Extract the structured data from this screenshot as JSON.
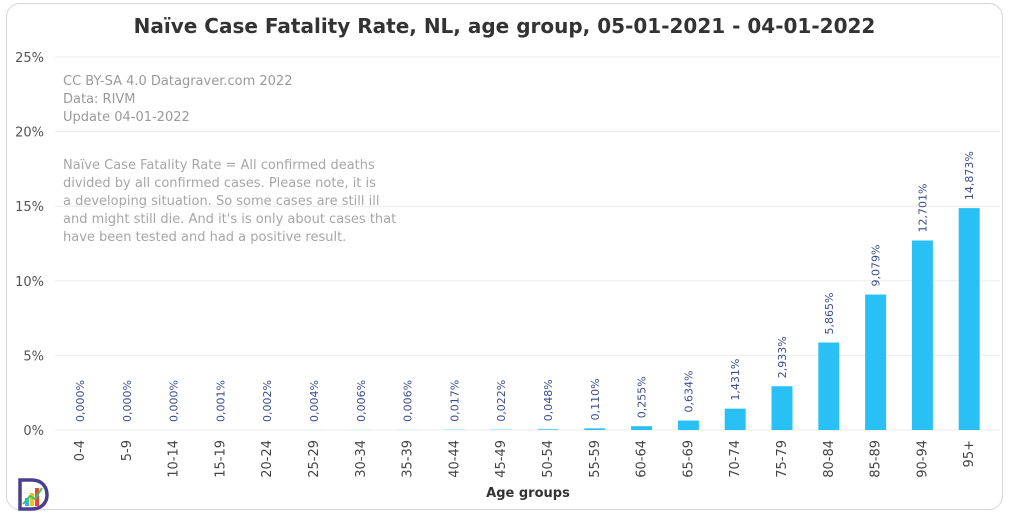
{
  "chart_data": {
    "type": "bar",
    "title": "Naïve Case Fatality Rate, NL, age group, 05-01-2021 - 04-01-2022",
    "xlabel": "Age groups",
    "ylabel": "",
    "ylim": [
      0,
      25
    ],
    "y_ticks": [
      "0%",
      "5%",
      "10%",
      "15%",
      "20%",
      "25%"
    ],
    "y_tick_values": [
      0,
      5,
      10,
      15,
      20,
      25
    ],
    "grid": true,
    "bar_color": "#29c0f5",
    "label_color": "#3a4d8f",
    "categories": [
      "0-4",
      "5-9",
      "10-14",
      "15-19",
      "20-24",
      "25-29",
      "30-34",
      "35-39",
      "40-44",
      "45-49",
      "50-54",
      "55-59",
      "60-64",
      "65-69",
      "70-74",
      "75-79",
      "80-84",
      "85-89",
      "90-94",
      "95+"
    ],
    "values": [
      0.0,
      0.0,
      0.0,
      0.001,
      0.002,
      0.004,
      0.006,
      0.006,
      0.017,
      0.022,
      0.048,
      0.11,
      0.255,
      0.634,
      1.431,
      2.933,
      5.865,
      9.079,
      12.701,
      14.873
    ],
    "data_labels": [
      "0,000%",
      "0,000%",
      "0,000%",
      "0,001%",
      "0,002%",
      "0,004%",
      "0,006%",
      "0,006%",
      "0,017%",
      "0,022%",
      "0,048%",
      "0,110%",
      "0,255%",
      "0,634%",
      "1,431%",
      "2,933%",
      "5,865%",
      "9,079%",
      "12,701%",
      "14,873%"
    ]
  },
  "notes": {
    "license": "CC BY-SA 4.0  Datagraver.com 2022",
    "data_source": "Data: RIVM",
    "update": "Update 04-01-2022",
    "description": [
      "Naïve Case Fatality Rate = All confirmed deaths",
      "divided by all confirmed cases. Please note, it is",
      "a developing situation. So some cases are still ill",
      "and might still die. And it's is only about cases that",
      "have been tested and had a positive result."
    ]
  },
  "logo": {
    "icon": "datagraver-logo-icon"
  }
}
